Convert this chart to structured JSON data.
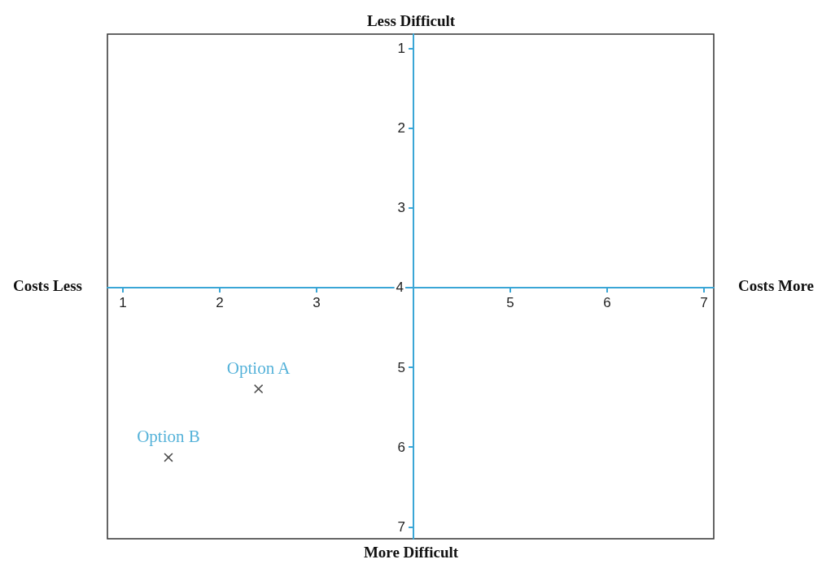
{
  "chart_data": {
    "type": "scatter",
    "annotations": [
      "Less Difficult",
      "Costs More",
      "More Difficult",
      "Costs Less"
    ],
    "xlim": [
      0.84,
      7.1
    ],
    "xticks": [
      1,
      2,
      3,
      5,
      6,
      7
    ],
    "ylim": [
      7.15,
      0.82
    ],
    "yticks": [
      1,
      2,
      3,
      4,
      5,
      6,
      7
    ],
    "marker": "cross",
    "grid": false,
    "legend": false,
    "series": [
      {
        "name": "Option A",
        "color": "#222222",
        "x": [
          2.4
        ],
        "values": [
          5.27
        ]
      },
      {
        "name": "Option B",
        "color": "#222222",
        "x": [
          1.47
        ],
        "values": [
          6.13
        ]
      }
    ]
  }
}
